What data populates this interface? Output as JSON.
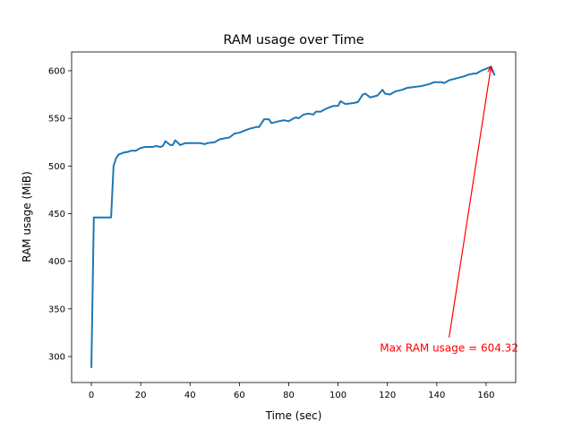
{
  "chart_data": {
    "type": "line",
    "title": "RAM usage over Time",
    "xlabel": "Time (sec)",
    "ylabel": "RAM usage (MiB)",
    "xlim": [
      -8,
      172
    ],
    "ylim": [
      272.7,
      619.7
    ],
    "xticks": [
      0,
      20,
      40,
      60,
      80,
      100,
      120,
      140,
      160
    ],
    "yticks": [
      300,
      350,
      400,
      450,
      500,
      550,
      600
    ],
    "grid": false,
    "color": "#1f77b4",
    "series": [
      {
        "x": [
          0,
          1,
          8,
          9,
          10,
          11,
          13,
          15,
          16,
          18,
          20,
          22,
          25,
          26,
          28,
          29,
          30,
          32,
          33,
          34,
          36,
          38,
          42,
          44,
          46,
          47,
          50,
          52,
          56,
          58,
          60,
          62,
          64,
          67,
          68,
          70,
          72,
          73,
          76,
          78,
          80,
          82,
          83,
          84,
          86,
          88,
          90,
          91,
          93,
          95,
          98,
          100,
          101,
          103,
          106,
          108,
          110,
          111,
          113,
          116,
          118,
          119,
          121,
          123,
          126,
          128,
          131,
          134,
          137,
          139,
          142,
          143,
          145,
          148,
          151,
          153,
          155,
          156,
          158,
          160,
          162,
          163.5
        ],
        "y": [
          288,
          446,
          446,
          500,
          508,
          512,
          514,
          515,
          516,
          516,
          519,
          520,
          520,
          521,
          520,
          521,
          526,
          522,
          522,
          527,
          522,
          524,
          524,
          524,
          523,
          524,
          525,
          528,
          530,
          534,
          535,
          537,
          539,
          541,
          541,
          549,
          549,
          545,
          547,
          548,
          547,
          550,
          551,
          550,
          554,
          555,
          554,
          557,
          557,
          560,
          563,
          563,
          568,
          565,
          566,
          567,
          575,
          576,
          572,
          574,
          580,
          576,
          575,
          578,
          580,
          582,
          583,
          584,
          586,
          588,
          588,
          587,
          590,
          592,
          594,
          596,
          597,
          597,
          600,
          602,
          604.32,
          595
        ]
      }
    ],
    "annotation": {
      "text": "Max RAM usage = 604.32",
      "xy": [
        162,
        604.32
      ],
      "xytext": [
        145,
        320
      ],
      "color": "#ff0000"
    }
  }
}
